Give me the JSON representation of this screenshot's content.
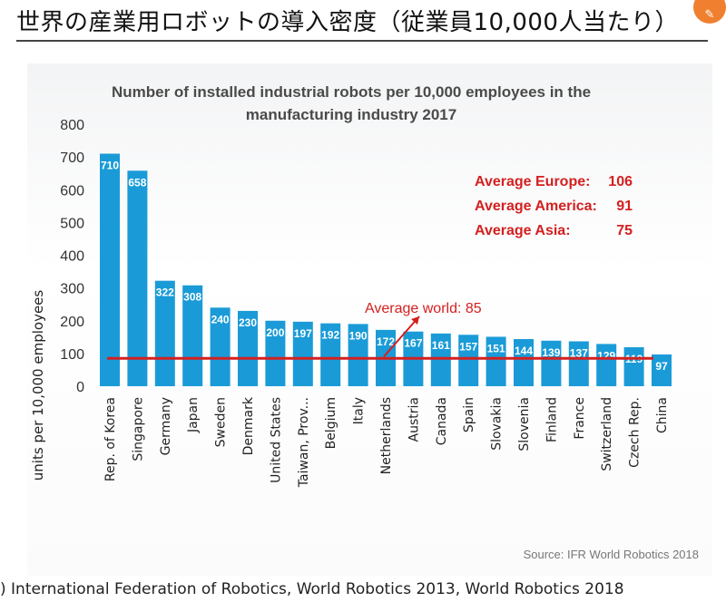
{
  "slide": {
    "title": "世界の産業用ロボットの導入密度（従業員10,000人当たり）",
    "corner_icon": "chat-icon",
    "footnote": ") International Federation of Robotics, World Robotics 2013, World Robotics 2018"
  },
  "chart_data": {
    "type": "bar",
    "title_line1": "Number of installed industrial robots per 10,000 employees in the",
    "title_line2": "manufacturing industry 2017",
    "ylabel": "units per 10,000 employees",
    "ylim": [
      0,
      800
    ],
    "yticks": [
      0,
      100,
      200,
      300,
      400,
      500,
      600,
      700,
      800
    ],
    "categories": [
      "Rep. of Korea",
      "Singapore",
      "Germany",
      "Japan",
      "Sweden",
      "Denmark",
      "United States",
      "Taiwan, Prov...",
      "Belgium",
      "Italy",
      "Netherlands",
      "Austria",
      "Canada",
      "Spain",
      "Slovakia",
      "Slovenia",
      "Finland",
      "France",
      "Switzerland",
      "Czech Rep.",
      "China"
    ],
    "values": [
      710,
      658,
      322,
      308,
      240,
      230,
      200,
      197,
      192,
      190,
      172,
      167,
      161,
      157,
      151,
      144,
      139,
      137,
      129,
      119,
      97
    ],
    "bar_color": "#1a9bd7",
    "reference_line": {
      "label": "Average world: 85",
      "value": 85,
      "color": "#d42020"
    },
    "averages": [
      {
        "label": "Average Europe:",
        "value": "106"
      },
      {
        "label": "Average America:",
        "value": "91"
      },
      {
        "label": "Average Asia:",
        "value": "75"
      }
    ],
    "averages_color": "#d42020",
    "source": "Source: IFR World Robotics 2018",
    "grid": false
  }
}
